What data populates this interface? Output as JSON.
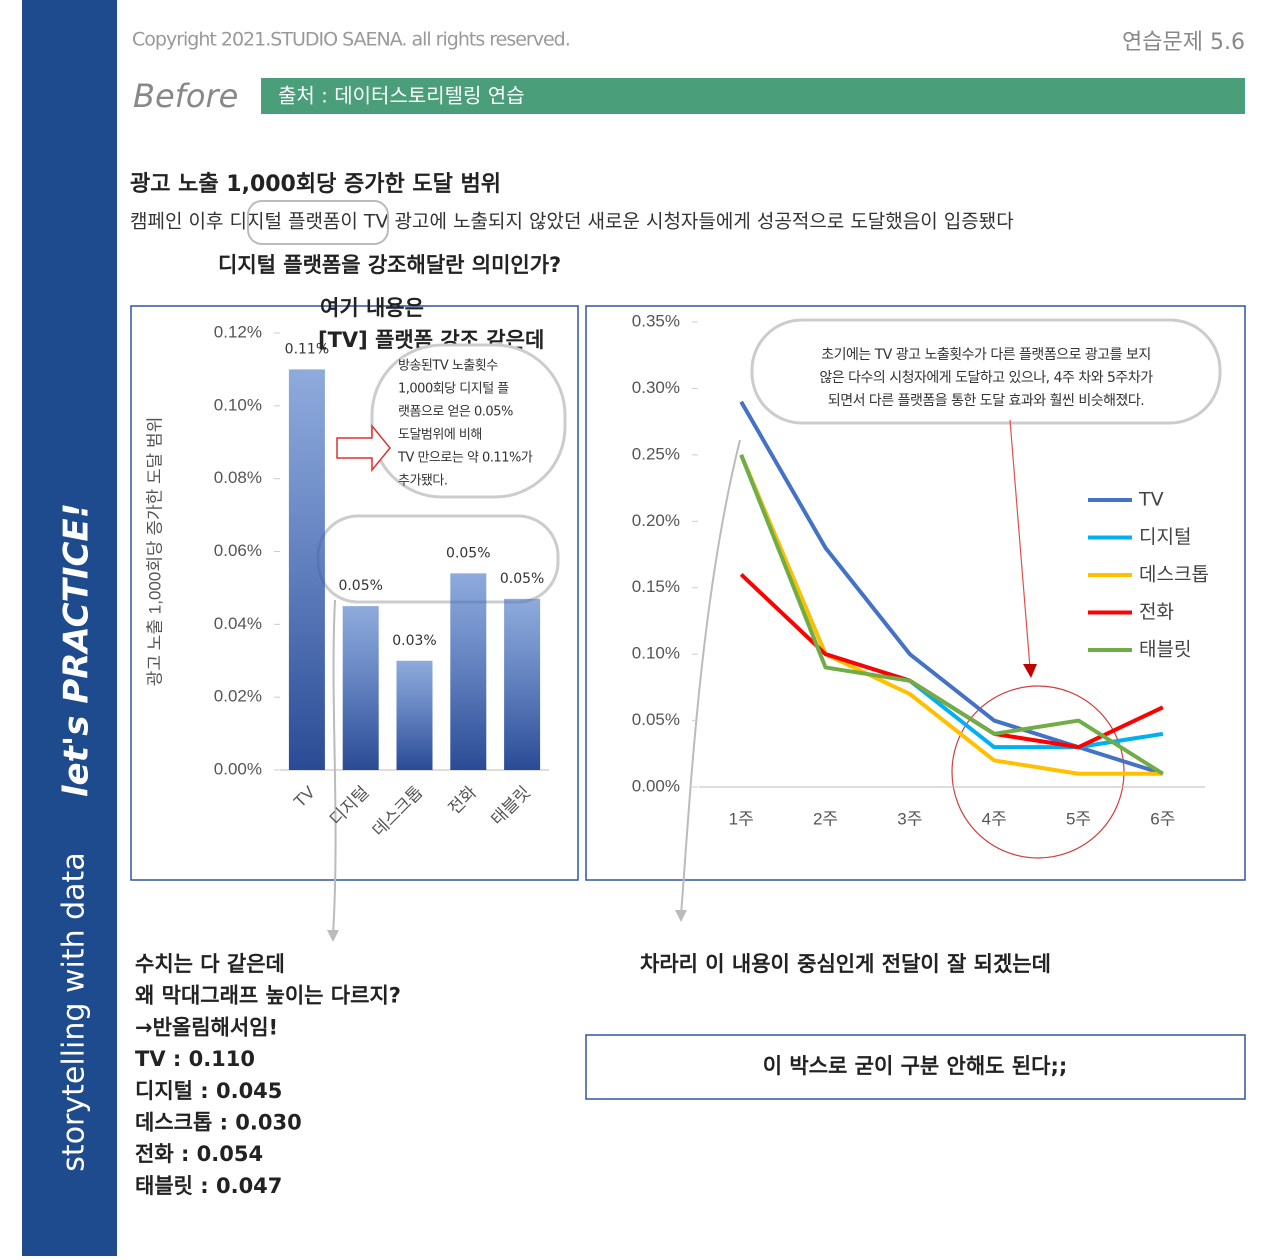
{
  "sidebar": {
    "series": "storytelling with data",
    "practice": "let's PRACTICE!"
  },
  "header": {
    "copyright": "Copyright 2021.STUDIO SAENA. all rights reserved.",
    "exercise": "연습문제 5.6",
    "before": "Before",
    "source": "출처 : 데이터스토리텔링 연습"
  },
  "title": "광고 노출 1,000회당 증가한 도달 범위",
  "subtitle": "캠페인 이후 디지털 플랫폼이 TV 광고에 노출되지 않았던 새로운 시청자들에게 성공적으로 도달했음이 입증됐다",
  "notes": {
    "question": "디지털 플랫폼을 강조해달란 의미인가?",
    "tv_emphasis": [
      "여기 내용은",
      "[TV] 플랫폼 강조 같은데"
    ],
    "bar_callout": [
      "방송된TV 노출횟수",
      "1,000회당 디지털 플",
      "랫폼으로 얻은 0.05%",
      "도달범위에 비해",
      "TV 만으로는 약 0.11%가",
      "추가됐다."
    ],
    "rounding": [
      "수치는 다 같은데",
      "왜 막대그래프 높이는 다르지?",
      "→반올림해서임!",
      "TV : 0.110",
      "디지털 : 0.045",
      "데스크톱 : 0.030",
      "전화 : 0.054",
      "태블릿 : 0.047"
    ],
    "center": "차라리 이 내용이 중심인게 전달이 잘 되겠는데",
    "box": "이 박스로 굳이 구분 안해도 된다;;"
  },
  "chart_data": [
    {
      "type": "bar",
      "y_label": "광고 노출 1,000회당 증가한 도달 범위",
      "categories": [
        "TV",
        "디지털",
        "데스크톱",
        "전화",
        "태블릿"
      ],
      "values": [
        0.11,
        0.045,
        0.03,
        0.054,
        0.047
      ],
      "value_labels": [
        "0.11%",
        "0.05%",
        "0.03%",
        "0.05%",
        "0.05%"
      ],
      "color": "#4472c4",
      "ylim": [
        0,
        0.12
      ],
      "yticks": [
        {
          "value": 0,
          "label": "0.00%"
        },
        {
          "value": 0.02,
          "label": "0.02%"
        },
        {
          "value": 0.04,
          "label": "0.04%"
        },
        {
          "value": 0.06,
          "label": "0.06%"
        },
        {
          "value": 0.08,
          "label": "0.08%"
        },
        {
          "value": 0.1,
          "label": "0.10%"
        },
        {
          "value": 0.12,
          "label": "0.12%"
        }
      ],
      "grid": false
    },
    {
      "type": "line",
      "categories": [
        "1주",
        "2주",
        "3주",
        "4주",
        "5주",
        "6주"
      ],
      "series": [
        {
          "name": "TV",
          "color": "#4472c4",
          "values": [
            0.29,
            0.18,
            0.1,
            0.05,
            0.03,
            0.01
          ]
        },
        {
          "name": "디지털",
          "color": "#00b0f0",
          "values": [
            0.25,
            0.1,
            0.08,
            0.03,
            0.03,
            0.04
          ]
        },
        {
          "name": "데스크톱",
          "color": "#ffc000",
          "values": [
            0.25,
            0.1,
            0.07,
            0.02,
            0.01,
            0.01
          ]
        },
        {
          "name": "전화",
          "color": "#ff0000",
          "values": [
            0.16,
            0.1,
            0.08,
            0.04,
            0.03,
            0.06
          ]
        },
        {
          "name": "태블릿",
          "color": "#70ad47",
          "values": [
            0.25,
            0.09,
            0.08,
            0.04,
            0.05,
            0.01
          ]
        }
      ],
      "ylim": [
        0,
        0.35
      ],
      "yticks": [
        {
          "value": 0,
          "label": "0.00%"
        },
        {
          "value": 0.05,
          "label": "0.05%"
        },
        {
          "value": 0.1,
          "label": "0.10%"
        },
        {
          "value": 0.15,
          "label": "0.15%"
        },
        {
          "value": 0.2,
          "label": "0.20%"
        },
        {
          "value": 0.25,
          "label": "0.25%"
        },
        {
          "value": 0.3,
          "label": "0.30%"
        },
        {
          "value": 0.35,
          "label": "0.35%"
        }
      ],
      "grid": false,
      "legend": "right",
      "annotation": [
        "초기에는 TV 광고 노출횟수가 다른 플랫폼으로 광고를 보지",
        "않은 다수의 시청자에게 도달하고 있으나, 4주 차와 5주차가",
        "되면서 다른 플랫폼을 통한 도달 효과와 훨씬 비슷해졌다."
      ]
    }
  ]
}
